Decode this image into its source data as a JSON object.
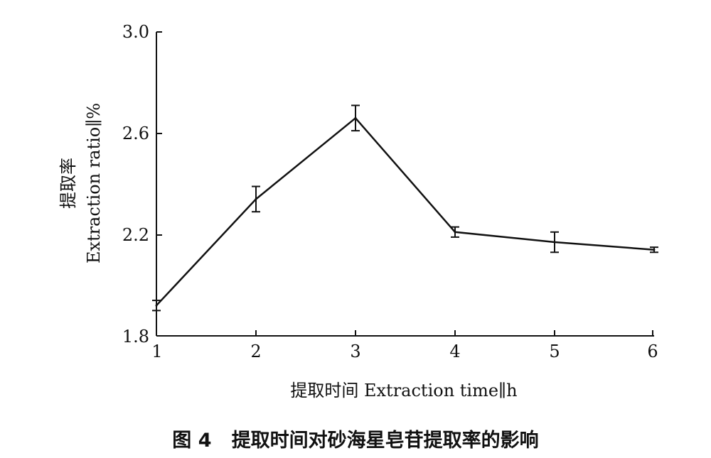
{
  "chart_data": {
    "type": "line",
    "x": [
      1,
      2,
      3,
      4,
      5,
      6
    ],
    "xticks": [
      "1",
      "2",
      "3",
      "4",
      "5",
      "6"
    ],
    "series": [
      {
        "values": [
          1.92,
          2.34,
          2.66,
          2.21,
          2.17,
          2.14
        ],
        "error": [
          0.02,
          0.05,
          0.05,
          0.02,
          0.04,
          0.01
        ]
      }
    ],
    "xlabel": "提取时间 Extraction time∥h",
    "ylabel_cn": "提取率",
    "ylabel_en": "Extraction ratio∥%",
    "yticks": [
      "1.8",
      "2.2",
      "2.6",
      "3.0"
    ],
    "xlim": [
      1,
      6
    ],
    "ylim": [
      1.8,
      3.0
    ],
    "grid": false,
    "color": "#111111"
  },
  "caption": {
    "label": "图 4",
    "text": "提取时间对砂海星皂苷提取率的影响"
  }
}
